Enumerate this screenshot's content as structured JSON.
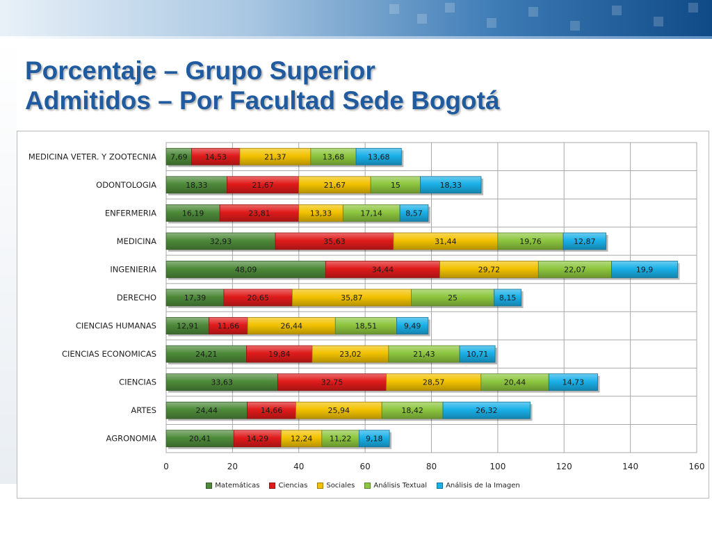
{
  "slide": {
    "title_line1": "Porcentaje – Grupo Superior",
    "title_line2": "Admitidos – Por Facultad Sede Bogotá"
  },
  "colors": {
    "title": "#1f5b9e",
    "series": [
      "#4e8a3a",
      "#e01b1b",
      "#f2c200",
      "#8dc63f",
      "#1ab0e8"
    ]
  },
  "chart_data": {
    "type": "bar",
    "orientation": "horizontal",
    "stacked": true,
    "categories": [
      "MEDICINA VETER. Y ZOOTECNIA",
      "ODONTOLOGIA",
      "ENFERMERIA",
      "MEDICINA",
      "INGENIERIA",
      "DERECHO",
      "CIENCIAS HUMANAS",
      "CIENCIAS ECONOMICAS",
      "CIENCIAS",
      "ARTES",
      "AGRONOMIA"
    ],
    "series": [
      {
        "name": "Matemáticas",
        "values": [
          7.69,
          18.33,
          16.19,
          32.93,
          48.09,
          17.39,
          12.91,
          24.21,
          33.63,
          24.44,
          20.41
        ],
        "labels": [
          "7,69",
          "18,33",
          "16,19",
          "32,93",
          "48,09",
          "17,39",
          "12,91",
          "24,21",
          "33,63",
          "24,44",
          "20,41"
        ]
      },
      {
        "name": "Ciencias",
        "values": [
          14.53,
          21.67,
          23.81,
          35.63,
          34.44,
          20.65,
          11.66,
          19.84,
          32.75,
          14.66,
          14.29
        ],
        "labels": [
          "14,53",
          "21,67",
          "23,81",
          "35,63",
          "34,44",
          "20,65",
          "11,66",
          "19,84",
          "32,75",
          "14,66",
          "14,29"
        ]
      },
      {
        "name": "Sociales",
        "values": [
          21.37,
          21.67,
          13.33,
          31.44,
          29.72,
          35.87,
          26.44,
          23.02,
          28.57,
          25.94,
          12.24
        ],
        "labels": [
          "21,37",
          "21,67",
          "13,33",
          "31,44",
          "29,72",
          "35,87",
          "26,44",
          "23,02",
          "28,57",
          "25,94",
          "12,24"
        ]
      },
      {
        "name": "Análisis Textual",
        "values": [
          13.68,
          15,
          17.14,
          19.76,
          22.07,
          25,
          18.51,
          21.43,
          20.44,
          18.42,
          11.22
        ],
        "labels": [
          "13,68",
          "15",
          "17,14",
          "19,76",
          "22,07",
          "25",
          "18,51",
          "21,43",
          "20,44",
          "18,42",
          "11,22"
        ]
      },
      {
        "name": "Análisis de la Imagen",
        "values": [
          13.68,
          18.33,
          8.57,
          12.87,
          19.9,
          8.15,
          9.49,
          10.71,
          14.73,
          26.32,
          9.18
        ],
        "labels": [
          "13,68",
          "18,33",
          "8,57",
          "12,87",
          "19,9",
          "8,15",
          "9,49",
          "10,71",
          "14,73",
          "26,32",
          "9,18"
        ]
      }
    ],
    "xlim": [
      0,
      160
    ],
    "xticks": [
      0,
      20,
      40,
      60,
      80,
      100,
      120,
      140,
      160
    ],
    "xtick_labels": [
      "0",
      "20",
      "40",
      "60",
      "80",
      "100",
      "120",
      "140",
      "160"
    ],
    "grid": true,
    "legend_position": "bottom"
  }
}
